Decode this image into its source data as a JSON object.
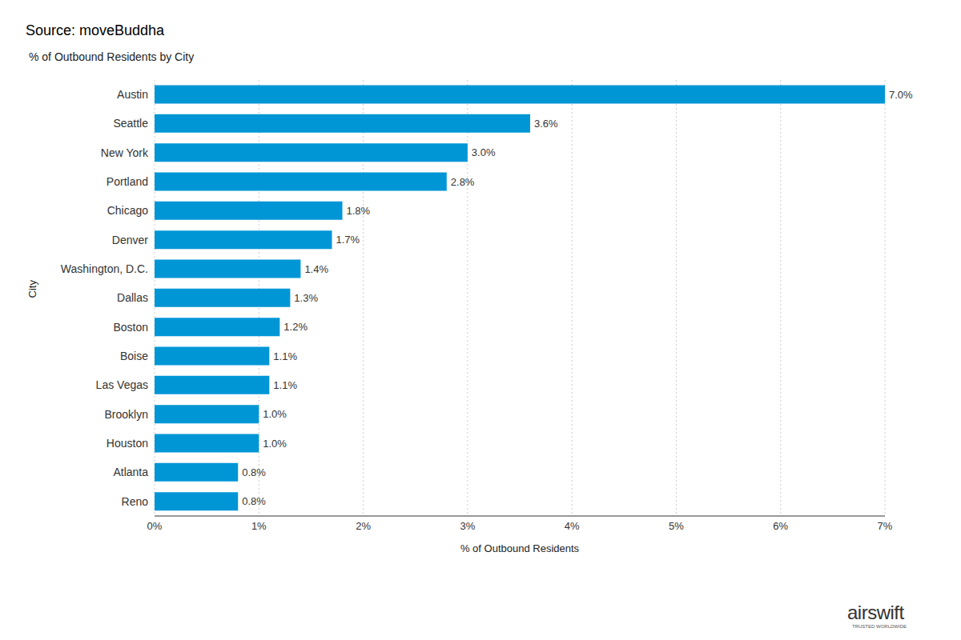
{
  "chart_data": {
    "type": "bar",
    "orientation": "horizontal",
    "title": "Source: moveBuddha",
    "subtitle": "% of Outbound Residents by City",
    "x_label": "% of Outbound Residents",
    "y_label": "City",
    "categories": [
      "Austin",
      "Seattle",
      "New York",
      "Portland",
      "Chicago",
      "Denver",
      "Washington, D.C.",
      "Dallas",
      "Boston",
      "Boise",
      "Las Vegas",
      "Brooklyn",
      "Houston",
      "Atlanta",
      "Reno"
    ],
    "values": [
      7.0,
      3.6,
      3.0,
      2.8,
      1.8,
      1.7,
      1.4,
      1.3,
      1.2,
      1.1,
      1.1,
      1.0,
      1.0,
      0.8,
      0.8
    ],
    "value_labels": [
      "7.0%",
      "3.6%",
      "3.0%",
      "2.8%",
      "1.8%",
      "1.7%",
      "1.4%",
      "1.3%",
      "1.2%",
      "1.1%",
      "1.1%",
      "1.0%",
      "1.0%",
      "0.8%",
      "0.8%"
    ],
    "color": "#0096d6",
    "xlim": [
      0,
      7
    ],
    "xticks": [
      {
        "value": 0,
        "label": "0%"
      },
      {
        "value": 1,
        "label": "1%"
      },
      {
        "value": 2,
        "label": "2%"
      },
      {
        "value": 3,
        "label": "3%"
      },
      {
        "value": 4,
        "label": "4%"
      },
      {
        "value": 5,
        "label": "5%"
      },
      {
        "value": 6,
        "label": "6%"
      },
      {
        "value": 7,
        "label": "7%"
      }
    ],
    "grid": true,
    "data_labels": true,
    "annotations": [
      "airswift",
      "TRUSTED WORLDWIDE"
    ]
  }
}
